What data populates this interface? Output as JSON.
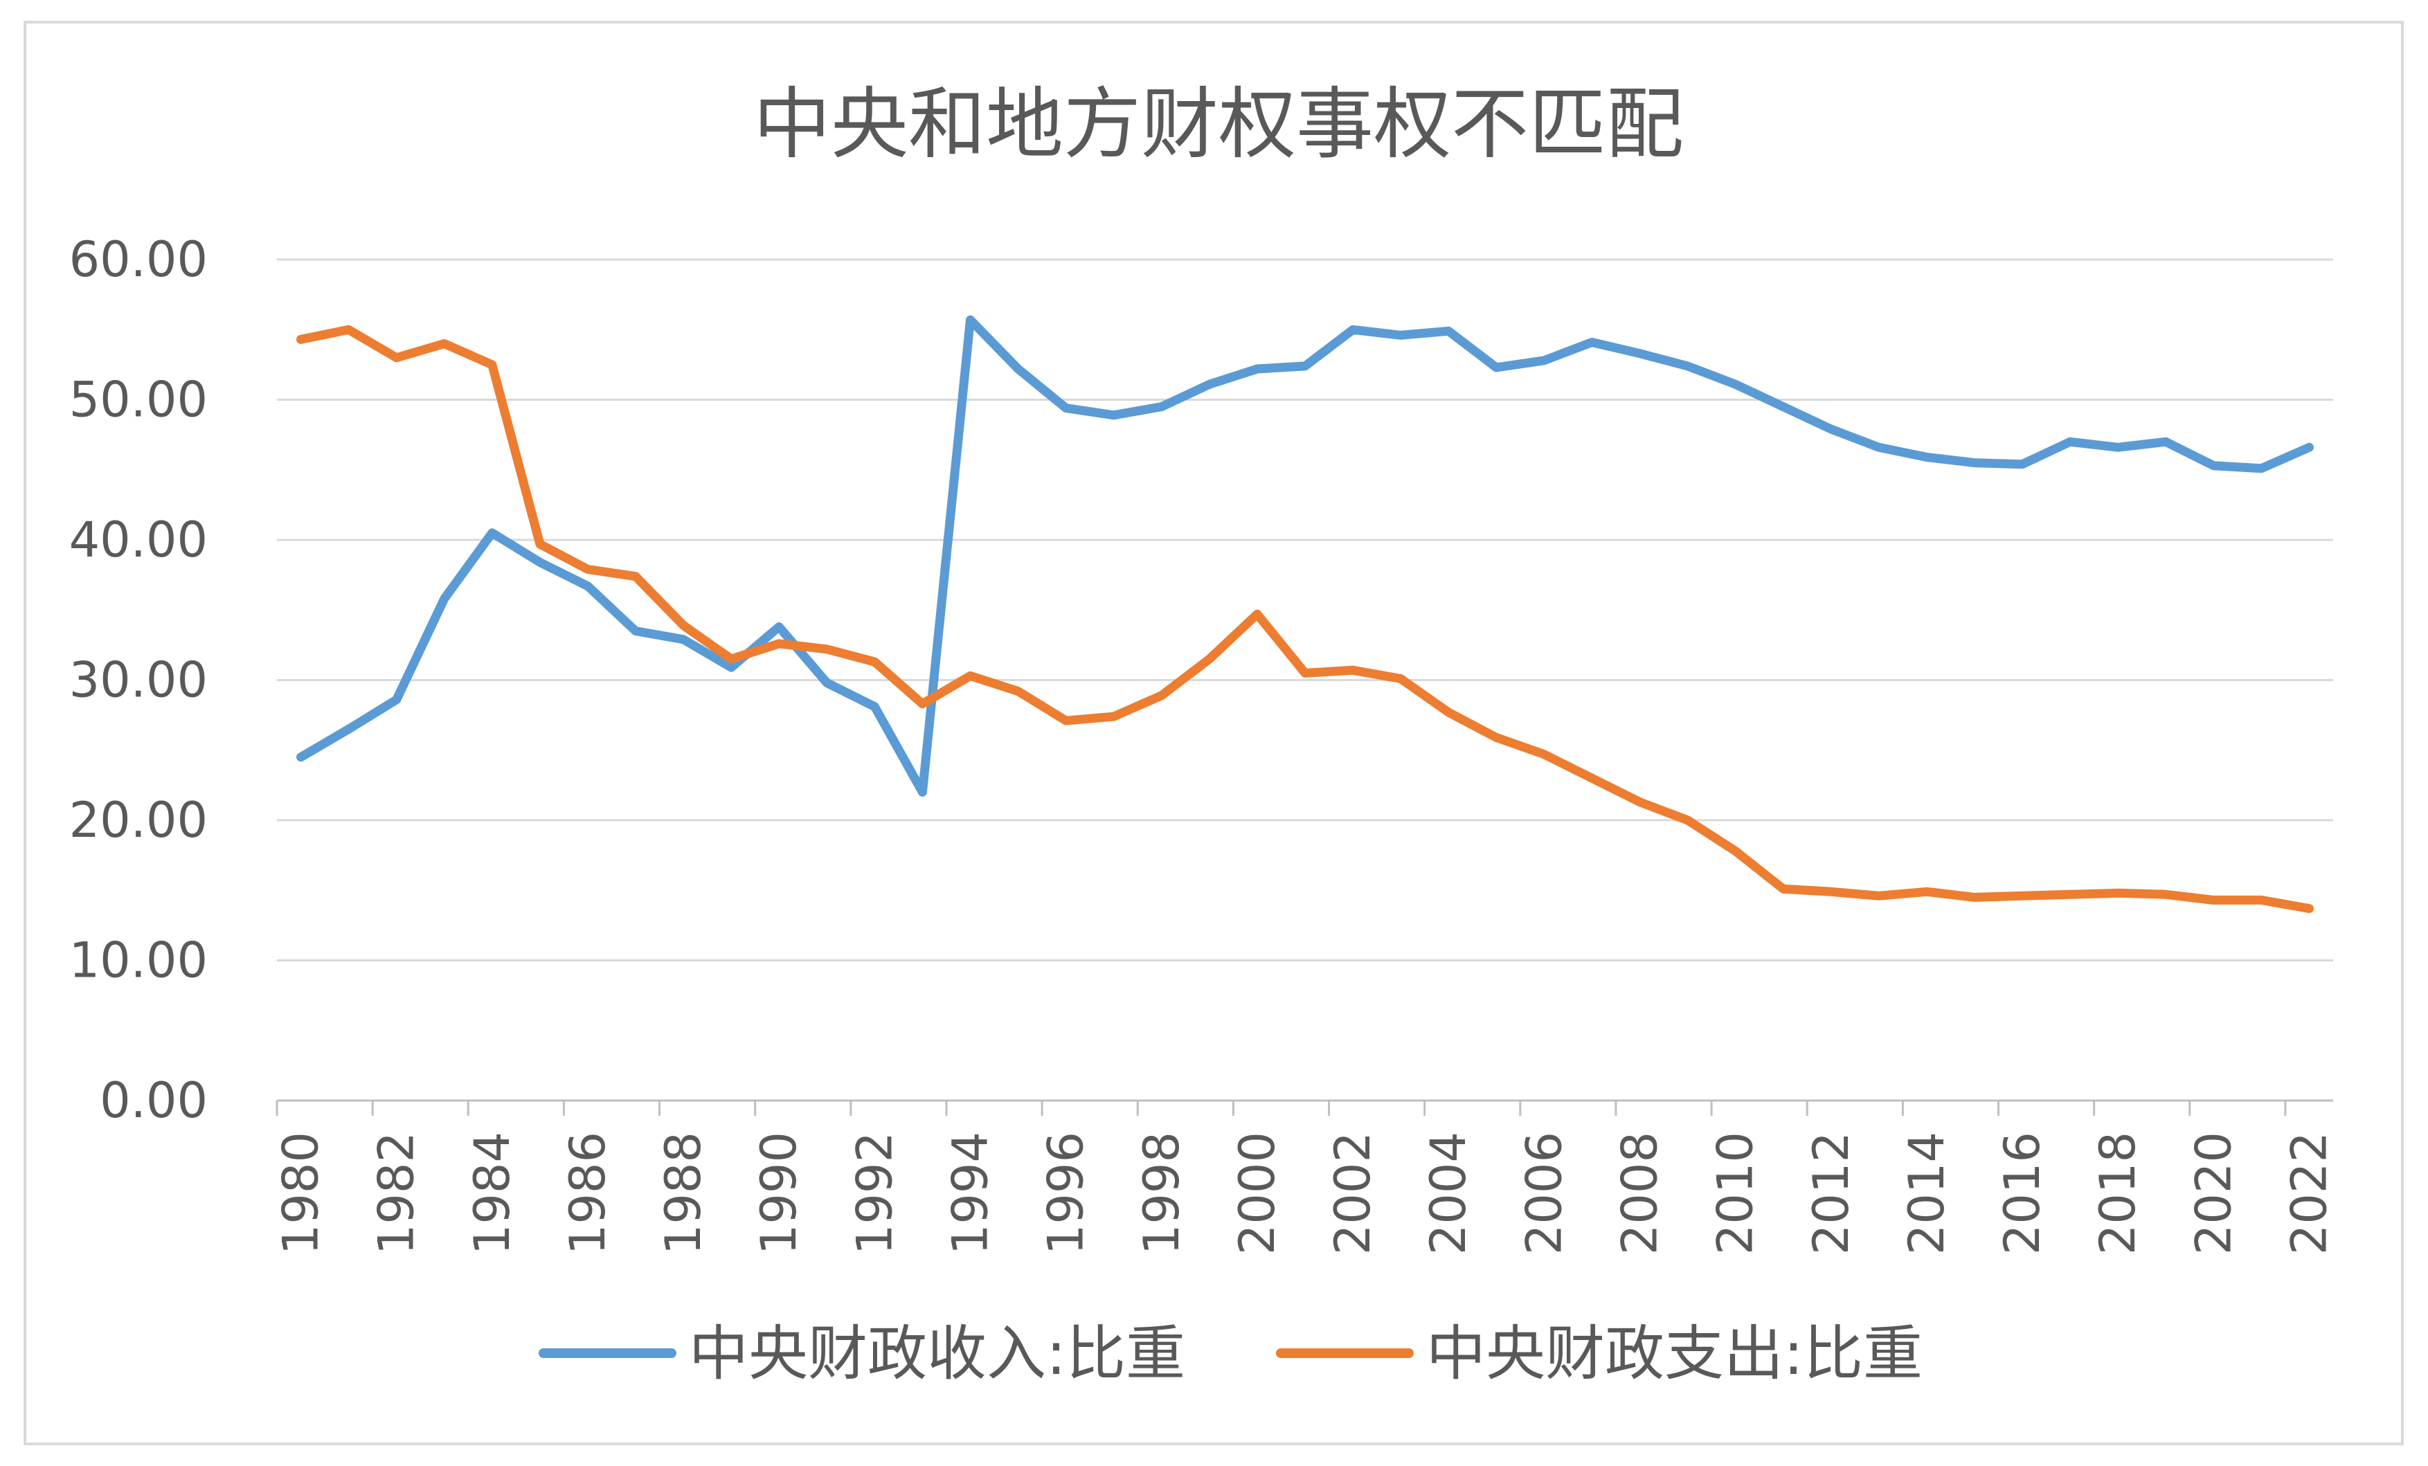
{
  "chart_data": {
    "type": "line",
    "title": "中央和地方财权事权不匹配",
    "xlabel": "",
    "ylabel": "",
    "ylim": [
      0,
      60
    ],
    "yticks": [
      "0.00",
      "10.00",
      "20.00",
      "30.00",
      "40.00",
      "50.00",
      "60.00"
    ],
    "x": [
      1980,
      1981,
      1982,
      1983,
      1984,
      1985,
      1986,
      1987,
      1988,
      1989,
      1990,
      1991,
      1992,
      1993,
      1994,
      1995,
      1996,
      1997,
      1998,
      1999,
      2000,
      2001,
      2002,
      2003,
      2004,
      2005,
      2006,
      2007,
      2008,
      2009,
      2010,
      2011,
      2012,
      2013,
      2014,
      2015,
      2016,
      2017,
      2018,
      2019,
      2020,
      2021,
      2022
    ],
    "xtick_labels": [
      "1980",
      "1982",
      "1984",
      "1986",
      "1988",
      "1990",
      "1992",
      "1994",
      "1996",
      "1998",
      "2000",
      "2002",
      "2004",
      "2006",
      "2008",
      "2010",
      "2012",
      "2014",
      "2016",
      "2018",
      "2020",
      "2022"
    ],
    "grid": true,
    "legend_position": "bottom",
    "series": [
      {
        "name": "中央财政收入:比重",
        "color": "#5B9BD5",
        "values": [
          24.5,
          26.5,
          28.6,
          35.8,
          40.5,
          38.4,
          36.7,
          33.5,
          32.9,
          30.9,
          33.8,
          29.8,
          28.1,
          22.0,
          55.7,
          52.2,
          49.4,
          48.9,
          49.5,
          51.1,
          52.2,
          52.4,
          55.0,
          54.6,
          54.9,
          52.3,
          52.8,
          54.1,
          53.3,
          52.4,
          51.1,
          49.5,
          47.9,
          46.6,
          45.9,
          45.5,
          45.4,
          47.0,
          46.6,
          47.0,
          45.3,
          45.1,
          46.6
        ]
      },
      {
        "name": "中央财政支出:比重",
        "color": "#ED7D31",
        "values": [
          54.3,
          55.0,
          53.0,
          54.0,
          52.5,
          39.7,
          37.9,
          37.4,
          33.9,
          31.5,
          32.6,
          32.2,
          31.3,
          28.3,
          30.3,
          29.2,
          27.1,
          27.4,
          28.9,
          31.5,
          34.7,
          30.5,
          30.7,
          30.1,
          27.7,
          25.9,
          24.7,
          23.0,
          21.3,
          20.0,
          17.8,
          15.1,
          14.9,
          14.6,
          14.9,
          14.5,
          14.6,
          14.7,
          14.8,
          14.7,
          14.3,
          14.3,
          13.7
        ]
      }
    ]
  }
}
